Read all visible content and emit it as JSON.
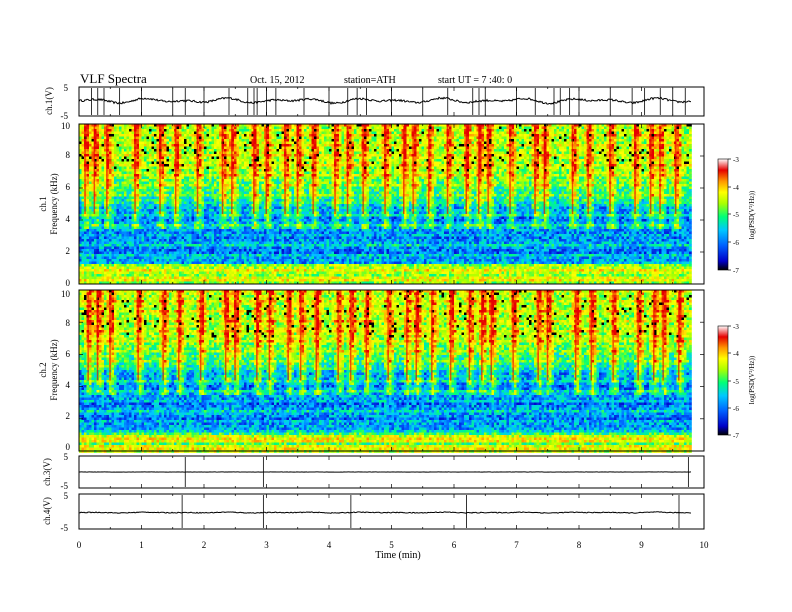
{
  "header": {
    "title": "VLF  Spectra",
    "date": "Oct. 15, 2012",
    "station": "station=ATH",
    "start_ut": "start  UT  =   7  :40:  0"
  },
  "chart_data": [
    {
      "type": "line",
      "panel": "ch1-waveform",
      "ylabel": "ch.1(V)",
      "ylim": [
        -5,
        5
      ],
      "yticks": [
        "5",
        "-5"
      ],
      "xlim": [
        0,
        10
      ],
      "x_end": 9.8,
      "baseline": 0.3,
      "spike_times": [
        0.2,
        0.3,
        0.4,
        0.65,
        1.0,
        1.5,
        1.7,
        2.0,
        2.4,
        2.7,
        2.8,
        2.85,
        3.0,
        3.15,
        3.6,
        4.0,
        4.3,
        4.45,
        4.6,
        5.0,
        5.5,
        5.9,
        6.3,
        6.4,
        6.5,
        7.0,
        7.3,
        7.6,
        7.7,
        7.85,
        8.0,
        8.5,
        8.85,
        9.05,
        9.3,
        9.5,
        9.7
      ]
    },
    {
      "type": "heatmap",
      "panel": "ch1-spectrogram",
      "ylabel": "ch.1",
      "ylabel2": "Frequency  (kHz)",
      "ylim": [
        0,
        10
      ],
      "yticks": [
        "0",
        "2",
        "4",
        "6",
        "8",
        "10"
      ],
      "xlim": [
        0,
        10
      ],
      "x_end": 9.8,
      "colorbar": {
        "label": "log(PSD(V²/Hz))",
        "range": [
          -7,
          -3
        ],
        "ticks": [
          "-3",
          "-4",
          "-5",
          "-6",
          "-7"
        ]
      },
      "bursts": [
        0.1,
        0.25,
        0.45,
        0.9,
        1.3,
        1.55,
        1.9,
        2.3,
        2.45,
        2.8,
        3.0,
        3.3,
        3.5,
        3.75,
        4.1,
        4.3,
        4.55,
        4.9,
        5.2,
        5.35,
        5.6,
        5.9,
        6.2,
        6.4,
        6.55,
        6.9,
        7.3,
        7.45,
        7.9,
        8.15,
        8.5,
        8.9,
        9.15,
        9.3,
        9.55
      ]
    },
    {
      "type": "heatmap",
      "panel": "ch2-spectrogram",
      "ylabel": "ch.2",
      "ylabel2": "Frequency  (kHz)",
      "ylim": [
        0,
        10
      ],
      "yticks": [
        "0",
        "2",
        "4",
        "6",
        "8",
        "10"
      ],
      "xlim": [
        0,
        10
      ],
      "x_end": 9.8,
      "colorbar": {
        "label": "log(PSD(V²/Hz))",
        "range": [
          -7,
          -3
        ],
        "ticks": [
          "-3",
          "-4",
          "-5",
          "-6",
          "-7"
        ]
      },
      "bursts": [
        0.15,
        0.3,
        0.5,
        0.95,
        1.35,
        1.6,
        1.95,
        2.35,
        2.5,
        2.85,
        3.05,
        3.35,
        3.55,
        3.8,
        4.15,
        4.35,
        4.6,
        4.95,
        5.25,
        5.4,
        5.65,
        5.95,
        6.25,
        6.45,
        6.6,
        6.95,
        7.35,
        7.5,
        7.95,
        8.2,
        8.55,
        8.95,
        9.2,
        9.35,
        9.6
      ]
    },
    {
      "type": "line",
      "panel": "ch3-waveform",
      "ylabel": "ch.3(V)",
      "ylim": [
        -5,
        5
      ],
      "yticks": [
        "5",
        "-5"
      ],
      "xlim": [
        0,
        10
      ],
      "x_end": 9.8,
      "baseline": 0,
      "spike_times": [
        1.7,
        2.95,
        9.75
      ]
    },
    {
      "type": "line",
      "panel": "ch4-waveform",
      "ylabel": "ch.4(V)",
      "ylim": [
        -5,
        5
      ],
      "yticks": [
        "5",
        "-5"
      ],
      "xticks": [
        "0",
        "1",
        "2",
        "3",
        "4",
        "5",
        "6",
        "7",
        "8",
        "9",
        "10"
      ],
      "xlabel": "Time  (min)",
      "xlim": [
        0,
        10
      ],
      "x_end": 9.8,
      "baseline": -0.3,
      "spike_times": [
        1.65,
        2.95,
        4.35,
        6.2,
        9.6
      ]
    }
  ],
  "colors": {
    "colormap": [
      "#000000",
      "#0000c8",
      "#0060ff",
      "#00c8ff",
      "#00ff78",
      "#aaff00",
      "#ffff00",
      "#ff9600",
      "#e60000",
      "#ffffff"
    ]
  }
}
